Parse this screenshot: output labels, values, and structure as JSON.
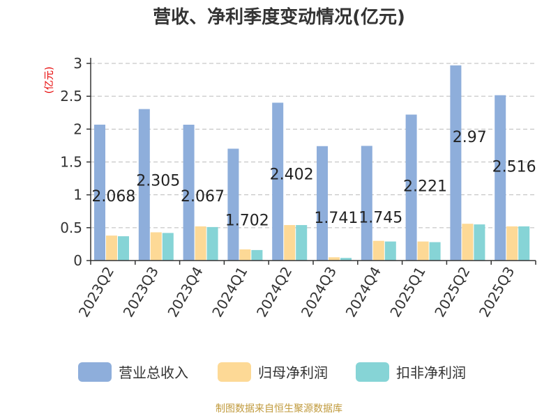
{
  "chart_data": {
    "type": "bar",
    "title": "营收、净利季度变动情况(亿元)",
    "unit_label": "(亿元)",
    "categories": [
      "2023Q2",
      "2023Q3",
      "2023Q4",
      "2024Q1",
      "2024Q2",
      "2024Q3",
      "2024Q4",
      "2025Q1",
      "2025Q2",
      "2025Q3"
    ],
    "series": [
      {
        "name": "营业总收入",
        "color": "#8eaedb",
        "values": [
          2.068,
          2.305,
          2.067,
          1.702,
          2.402,
          1.741,
          1.745,
          2.221,
          2.97,
          2.516
        ]
      },
      {
        "name": "归母净利润",
        "color": "#fdd996",
        "values": [
          0.38,
          0.43,
          0.52,
          0.17,
          0.54,
          0.05,
          0.3,
          0.29,
          0.56,
          0.52
        ]
      },
      {
        "name": "扣非净利润",
        "color": "#86d4d6",
        "values": [
          0.37,
          0.42,
          0.51,
          0.16,
          0.54,
          0.04,
          0.29,
          0.28,
          0.55,
          0.52
        ]
      }
    ],
    "data_labels": [
      "2.068",
      "2.305",
      "2.067",
      "1.702",
      "2.402",
      "1.741",
      "1.745",
      "2.221",
      "2.97",
      "2.516"
    ],
    "yticks": [
      "0",
      "0.5",
      "1",
      "1.5",
      "2",
      "2.5",
      "3"
    ],
    "ylim": [
      0,
      3
    ],
    "grid": true,
    "legend_position": "bottom"
  },
  "source_text": "制图数据来自恒生聚源数据库"
}
